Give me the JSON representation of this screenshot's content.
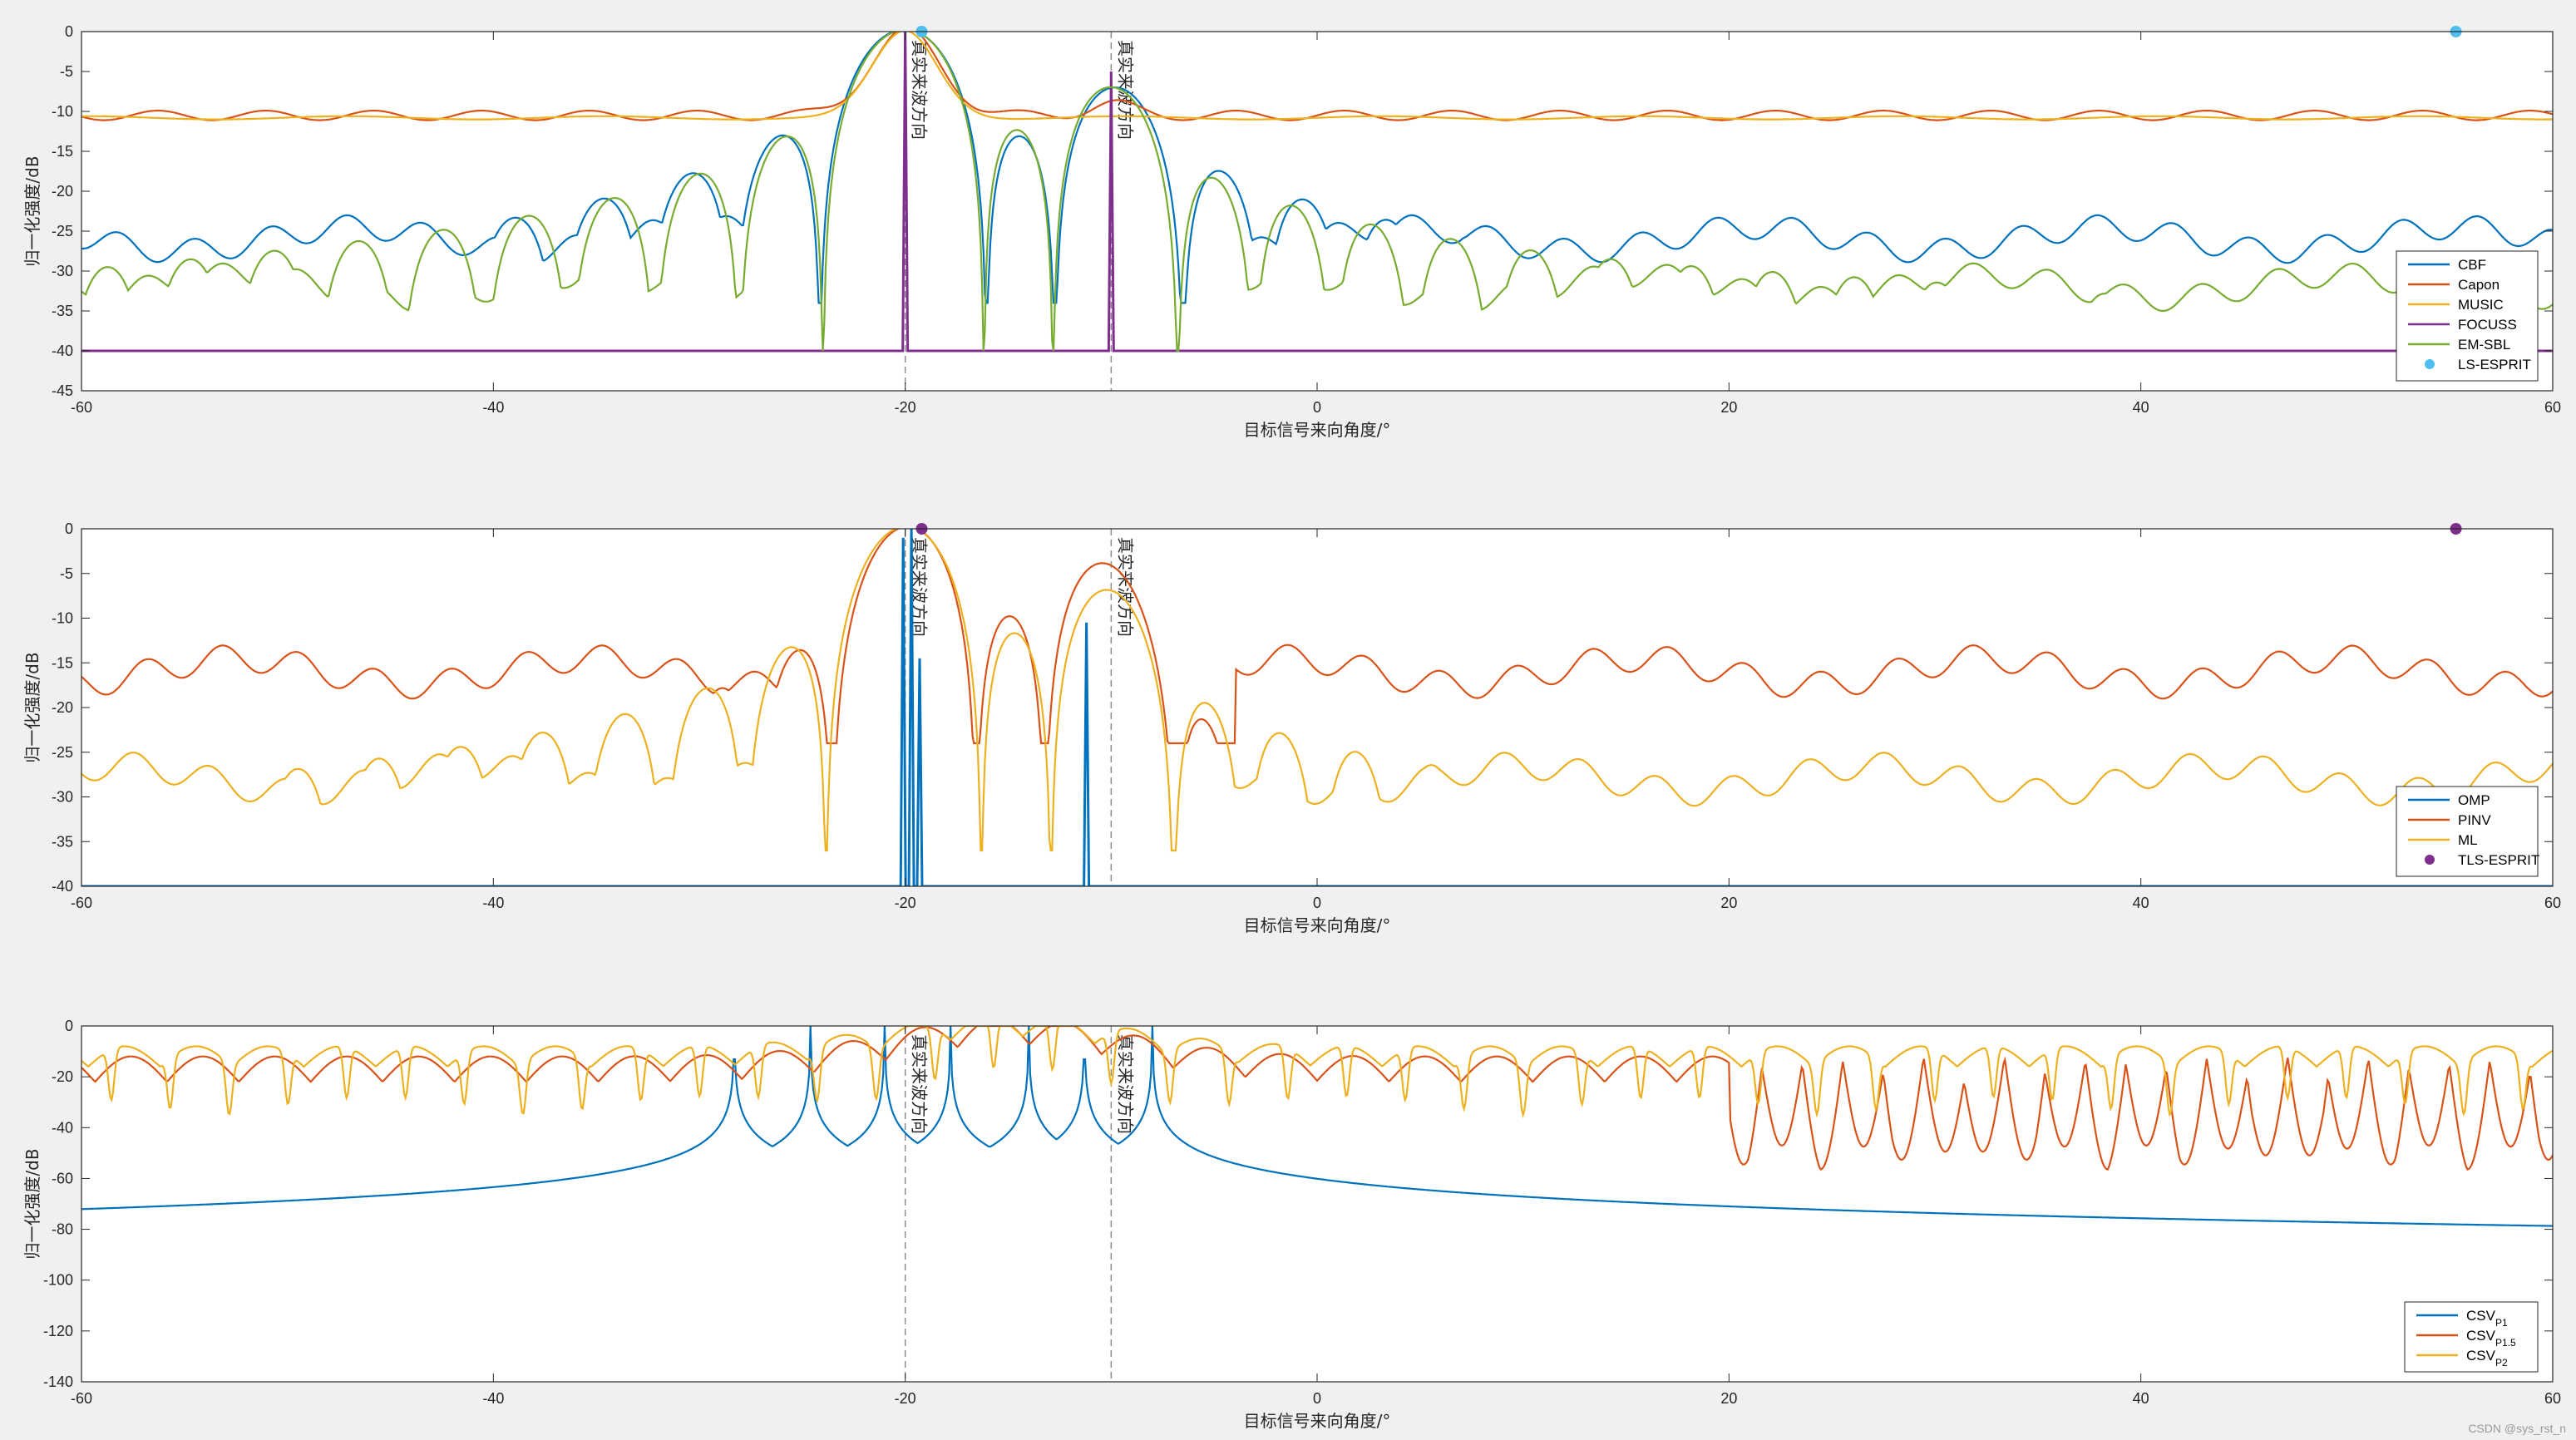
{
  "watermark": "CSDN @sys_rst_n",
  "chart_data": [
    {
      "type": "line",
      "xlabel": "目标信号来向角度/°",
      "ylabel": "归一化强度/dB",
      "xlim": [
        -60,
        60
      ],
      "ylim": [
        -45,
        0
      ],
      "xticks": [
        -60,
        -40,
        -20,
        0,
        20,
        40,
        60
      ],
      "yticks": [
        0,
        -5,
        -10,
        -15,
        -20,
        -25,
        -30,
        -35,
        -40,
        -45
      ],
      "true_directions": [
        -20,
        -10
      ],
      "annotation": "真实来波方向",
      "legend_position": "bottom-right",
      "series": [
        {
          "name": "CBF",
          "color": "#0072BD",
          "kind": "lobes",
          "sources": [
            -20,
            -10
          ],
          "amps": [
            1,
            0.32
          ],
          "width": 4.2,
          "floor": -34
        },
        {
          "name": "Capon",
          "color": "#D95319",
          "kind": "capon",
          "sources": [
            -20,
            -10
          ],
          "peak": 0,
          "base": -10.5
        },
        {
          "name": "MUSIC",
          "color": "#EDB120",
          "kind": "flat",
          "sources": [
            -20
          ],
          "base": -10.8
        },
        {
          "name": "FOCUSS",
          "color": "#7E2F8E",
          "kind": "spikes",
          "spikes": [
            [
              -20,
              0
            ],
            [
              -10,
              -5
            ]
          ],
          "floor": -40
        },
        {
          "name": "EM-SBL",
          "color": "#77AC30",
          "kind": "lobes",
          "sources": [
            -20,
            -10
          ],
          "amps": [
            1,
            0.32
          ],
          "width": 4.05,
          "floor": -40
        },
        {
          "name": "LS-ESPRIT",
          "color": "#4DBEEE",
          "kind": "markers",
          "points": [
            [
              -19.2,
              0
            ],
            [
              55.3,
              0
            ]
          ]
        }
      ]
    },
    {
      "type": "line",
      "xlabel": "目标信号来向角度/°",
      "ylabel": "归一化强度/dB",
      "xlim": [
        -60,
        60
      ],
      "ylim": [
        -40,
        0
      ],
      "xticks": [
        -60,
        -40,
        -20,
        0,
        20,
        40,
        60
      ],
      "yticks": [
        0,
        -5,
        -10,
        -15,
        -20,
        -25,
        -30,
        -35,
        -40
      ],
      "true_directions": [
        -20,
        -10
      ],
      "annotation": "真实来波方向",
      "legend_position": "bottom-right",
      "series": [
        {
          "name": "OMP",
          "color": "#0072BD",
          "kind": "spikes",
          "spikes": [
            [
              -20.1,
              -1
            ],
            [
              -19.7,
              0
            ],
            [
              -19.3,
              -14.5
            ],
            [
              -11.2,
              -10.5
            ]
          ],
          "floor": -40
        },
        {
          "name": "PINV",
          "color": "#D95319",
          "kind": "lobes",
          "sources": [
            -20,
            -10
          ],
          "amps": [
            1,
            0.55
          ],
          "width": 3.6,
          "floor": -24
        },
        {
          "name": "ML",
          "color": "#EDB120",
          "kind": "lobes",
          "sources": [
            -20,
            -10
          ],
          "amps": [
            1,
            0.33
          ],
          "width": 3.9,
          "floor": -36
        },
        {
          "name": "TLS-ESPRIT",
          "color": "#7E2F8E",
          "kind": "markers",
          "points": [
            [
              -19.2,
              0
            ],
            [
              55.3,
              0
            ]
          ]
        }
      ]
    },
    {
      "type": "line",
      "xlabel": "目标信号来向角度/°",
      "ylabel": "归一化强度/dB",
      "xlim": [
        -60,
        60
      ],
      "ylim": [
        -140,
        0
      ],
      "xticks": [
        -60,
        -40,
        -20,
        0,
        20,
        40,
        60
      ],
      "yticks": [
        0,
        -20,
        -40,
        -60,
        -80,
        -100,
        -120,
        -140
      ],
      "true_directions": [
        -20,
        -10
      ],
      "annotation": "真实来波方向",
      "legend_position": "bottom-right",
      "series": [
        {
          "name": "CSV",
          "sub": "P1",
          "color": "#0072BD",
          "kind": "csv_spiky",
          "peaks": [
            -28.3,
            -24.6,
            -21,
            -17.8,
            -14,
            -11.3,
            -8
          ]
        },
        {
          "name": "CSV",
          "sub": "P1.5",
          "color": "#D95319",
          "kind": "csv_lobes",
          "floor": -60
        },
        {
          "name": "CSV",
          "sub": "P2",
          "color": "#EDB120",
          "kind": "csv_lobes2",
          "floor": -35
        }
      ]
    }
  ]
}
